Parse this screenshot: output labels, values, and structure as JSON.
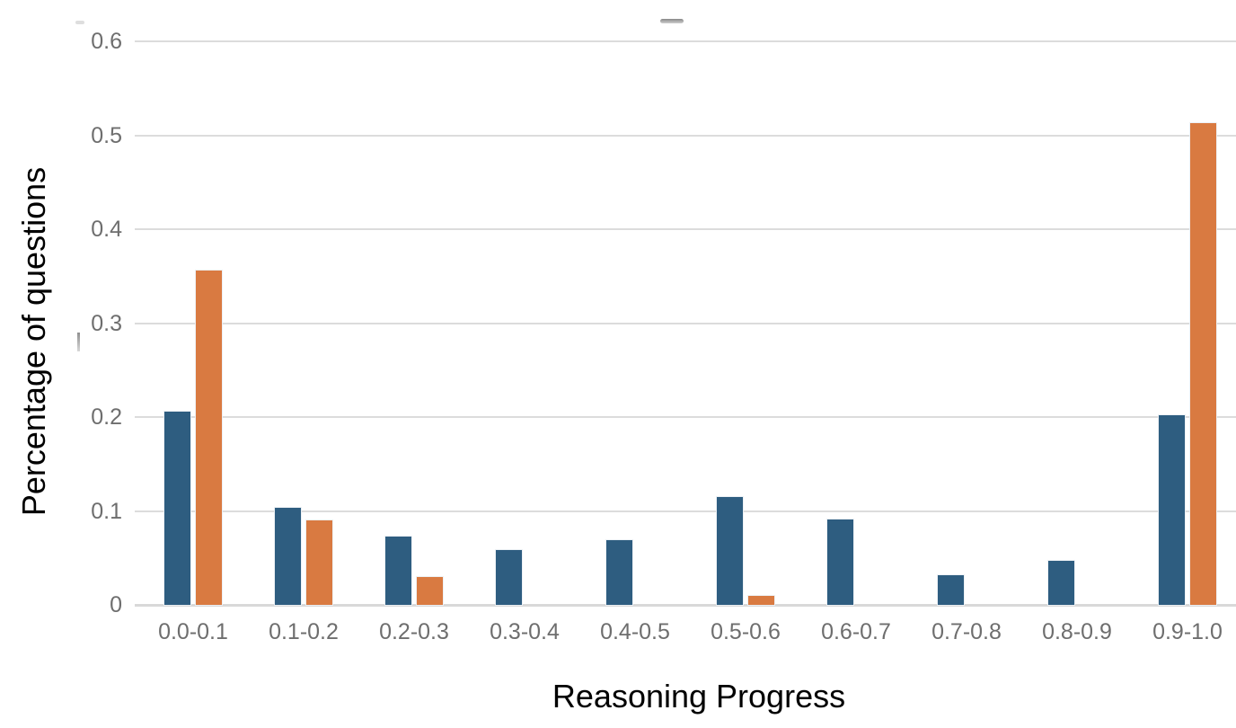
{
  "chart_data": {
    "type": "bar",
    "title": "",
    "xlabel": "Reasoning Progress",
    "ylabel": "Percentage of questions",
    "categories": [
      "0.0-0.1",
      "0.1-0.2",
      "0.2-0.3",
      "0.3-0.4",
      "0.4-0.5",
      "0.5-0.6",
      "0.6-0.7",
      "0.7-0.8",
      "0.8-0.9",
      "0.9-1.0"
    ],
    "series": [
      {
        "name": "series-blue",
        "color": "#2e5d80",
        "values": [
          0.206,
          0.103,
          0.073,
          0.058,
          0.069,
          0.115,
          0.091,
          0.032,
          0.047,
          0.202
        ]
      },
      {
        "name": "series-orange",
        "color": "#d97a41",
        "values": [
          0.356,
          0.09,
          0.03,
          null,
          null,
          0.01,
          null,
          null,
          null,
          0.513
        ]
      }
    ],
    "yticks": [
      0,
      0.1,
      0.2,
      0.3,
      0.4,
      0.5,
      0.6
    ],
    "ytick_labels": [
      "0",
      "0.1",
      "0.2",
      "0.3",
      "0.4",
      "0.5",
      "0.6"
    ],
    "ylim": [
      0,
      0.62
    ],
    "grid": "horizontal",
    "legend": "none"
  },
  "colors": {
    "background": "#ffffff",
    "grid": "#dcdcdc",
    "tick_label": "#6e6e6e",
    "axis_title": "#000000",
    "bar_blue": "#2e5d80",
    "bar_orange": "#d97a41"
  }
}
